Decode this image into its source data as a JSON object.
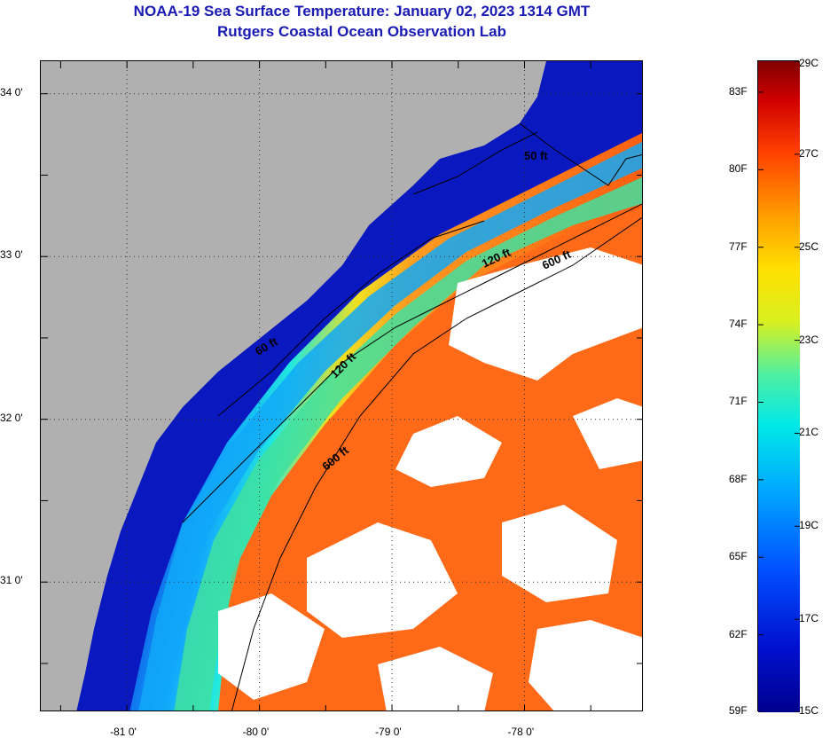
{
  "titles": {
    "line1": "NOAA-19 Sea Surface Temperature:  January 02, 2023 1314 GMT",
    "line2": "Rutgers Coastal Ocean Observation Lab"
  },
  "map": {
    "lon_ticks": [
      "-81 0'",
      "-80 0'",
      "-79 0'",
      "-78 0'"
    ],
    "lat_ticks": [
      "34 0'",
      "33 0'",
      "32 0'",
      "31 0'"
    ],
    "lon_values": [
      -81,
      -80,
      -79,
      -78
    ],
    "lat_values": [
      34,
      33,
      32,
      31
    ],
    "lon_range": [
      -81.65,
      -77.1
    ],
    "lat_range": [
      30.2,
      34.2
    ],
    "contour_labels": [
      "50 ft",
      "120 ft",
      "600 ft",
      "60 ft",
      "120 ft",
      "600 ft"
    ],
    "colors": {
      "land": "#b0b0b0",
      "cloud": "#ffffff",
      "cold": "#0a14b4",
      "warm": "#ff5a10"
    }
  },
  "colorbar": {
    "fahrenheit_labels": [
      "83F",
      "80F",
      "77F",
      "74F",
      "71F",
      "68F",
      "65F",
      "62F",
      "59F"
    ],
    "fahrenheit_values": [
      83,
      80,
      77,
      74,
      71,
      68,
      65,
      62,
      59
    ],
    "celsius_labels": [
      "29C",
      "27C",
      "25C",
      "23C",
      "21C",
      "19C",
      "17C",
      "15C"
    ],
    "celsius_values": [
      29,
      27,
      25,
      23,
      21,
      19,
      17,
      15
    ],
    "range_c": [
      15,
      29
    ]
  }
}
